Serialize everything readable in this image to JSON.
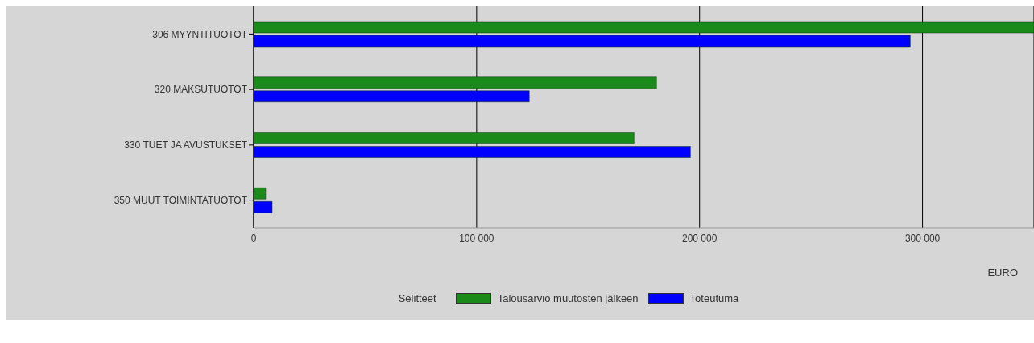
{
  "chart_data": {
    "type": "bar",
    "orientation": "horizontal",
    "categories": [
      "306 MYYNTITUOTOT",
      "320 MAKSUTUOTOT",
      "330 TUET JA AVUSTUKSET",
      "350 MUUT TOIMINTATUOTOT"
    ],
    "series": [
      {
        "name": "Talousarvio muutosten jälkeen",
        "color": "#1a8a1a",
        "values": [
          350000,
          180700,
          170600,
          5400
        ]
      },
      {
        "name": "Toteutuma",
        "color": "#0000ff",
        "values": [
          294500,
          123600,
          195900,
          8300
        ]
      }
    ],
    "xlabel": "EURO",
    "legend_title": "Selitteet",
    "xlim": [
      0,
      350000
    ],
    "xticks": [
      {
        "value": 0,
        "label": "0"
      },
      {
        "value": 100000,
        "label": "100 000"
      },
      {
        "value": 200000,
        "label": "200 000"
      },
      {
        "value": 300000,
        "label": "300 000"
      }
    ],
    "grid": "x",
    "legend": "bottom"
  }
}
